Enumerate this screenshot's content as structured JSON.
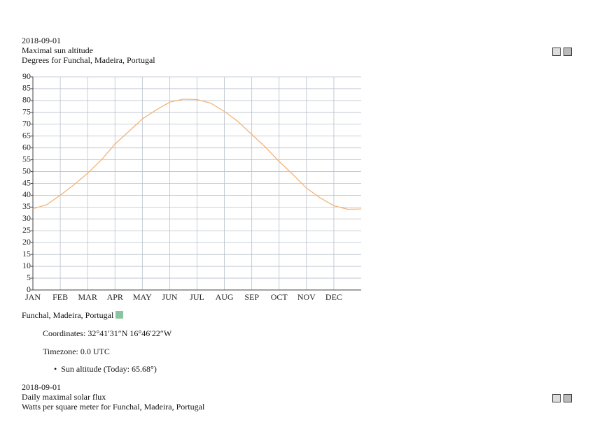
{
  "header": {
    "date": "2018-09-01",
    "title": "Maximal sun altitude",
    "subtitle": "Degrees for Funchal, Madeira, Portugal"
  },
  "chart_data": {
    "type": "line",
    "categories": [
      "JAN",
      null,
      "FEB",
      null,
      "MAR",
      null,
      "APR",
      null,
      "MAY",
      null,
      "JUN",
      null,
      "JUL",
      null,
      "AUG",
      null,
      "SEP",
      null,
      "OCT",
      null,
      "NOV",
      null,
      "DEC",
      null,
      null
    ],
    "series": [
      {
        "name": "Sun altitude",
        "color": "#f2b47a",
        "values": [
          34.3,
          36,
          40,
          44.4,
          49.3,
          54.9,
          61.6,
          66.9,
          72.2,
          76,
          79.3,
          80.6,
          80.4,
          78.9,
          75.4,
          71.1,
          65.7,
          60.3,
          54.3,
          48.8,
          43,
          38.9,
          35.6,
          34.1,
          34.2
        ]
      }
    ],
    "ylim": [
      0,
      90
    ],
    "yticks": [
      0,
      5,
      10,
      15,
      20,
      25,
      30,
      35,
      40,
      45,
      50,
      55,
      60,
      65,
      70,
      75,
      80,
      85,
      90
    ],
    "grid": true
  },
  "location": {
    "name": "Funchal, Madeira, Portugal",
    "coordinates": "Coordinates: 32°41′31″N 16°46′22″W",
    "timezone": "Timezone: 0.0 UTC",
    "items": [
      "Sun altitude (Today: 65.68°)"
    ]
  },
  "next": {
    "date": "2018-09-01",
    "title": "Daily maximal solar flux",
    "subtitle": "Watts per square meter for Funchal, Madeira, Portugal"
  }
}
